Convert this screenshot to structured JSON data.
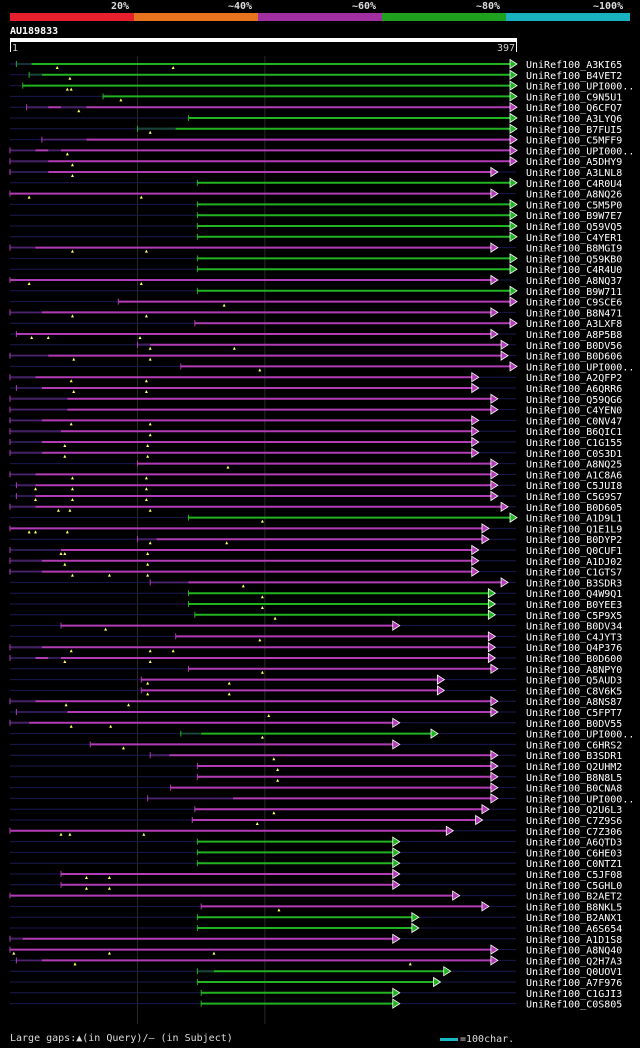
{
  "legend": {
    "segments": [
      {
        "label": "20%",
        "color": "#e8202e"
      },
      {
        "label": "~40%",
        "color": "#e8731f"
      },
      {
        "label": "~60%",
        "color": "#a22f9f"
      },
      {
        "label": "~80%",
        "color": "#1fa01f"
      },
      {
        "label": "~100%",
        "color": "#19b3c0"
      }
    ]
  },
  "query": {
    "id": "AU189833",
    "start_label": "1",
    "end_label": "397",
    "length": 397
  },
  "colors": {
    "purple": "#b23cb6",
    "green": "#22b322",
    "bg_line": "#1a1a50",
    "marker": "#ffff66"
  },
  "hits": [
    {
      "id": "UniRef100_A3KI65",
      "s": 5,
      "e": 397,
      "c": "green",
      "g": [
        [
          5,
          17
        ]
      ],
      "m": [
        37,
        128
      ]
    },
    {
      "id": "UniRef100_B4VET2",
      "s": 15,
      "e": 397,
      "c": "green",
      "g": [
        [
          15,
          25
        ]
      ],
      "m": [
        47
      ]
    },
    {
      "id": "UniRef100_UPI000..",
      "s": 10,
      "e": 397,
      "c": "green",
      "g": [],
      "m": [
        48,
        45
      ]
    },
    {
      "id": "UniRef100_C9N5U1",
      "s": 73,
      "e": 397,
      "c": "green",
      "g": [],
      "m": [
        87
      ]
    },
    {
      "id": "UniRef100_Q6CFQ7",
      "s": 13,
      "e": 397,
      "c": "purple",
      "g": [
        [
          13,
          30
        ],
        [
          40,
          60
        ]
      ],
      "m": [
        54
      ]
    },
    {
      "id": "UniRef100_A3LYQ6",
      "s": 140,
      "e": 397,
      "c": "green",
      "g": [],
      "m": []
    },
    {
      "id": "UniRef100_B7FUI5",
      "s": 100,
      "e": 397,
      "c": "green",
      "g": [
        [
          100,
          130
        ]
      ],
      "m": [
        110
      ]
    },
    {
      "id": "UniRef100_C5MFF9",
      "s": 25,
      "e": 397,
      "c": "purple",
      "g": [
        [
          25,
          60
        ]
      ],
      "m": []
    },
    {
      "id": "UniRef100_UPI000..",
      "s": 0,
      "e": 397,
      "c": "purple",
      "g": [
        [
          0,
          20
        ],
        [
          30,
          40
        ]
      ],
      "m": [
        45
      ]
    },
    {
      "id": "UniRef100_A5DHY9",
      "s": 0,
      "e": 397,
      "c": "purple",
      "g": [
        [
          0,
          30
        ]
      ],
      "m": [
        49
      ]
    },
    {
      "id": "UniRef100_A3LNL8",
      "s": 0,
      "e": 382,
      "c": "purple",
      "g": [
        [
          0,
          30
        ]
      ],
      "m": [
        49
      ]
    },
    {
      "id": "UniRef100_C4R0U4",
      "s": 147,
      "e": 397,
      "c": "green",
      "g": [],
      "m": []
    },
    {
      "id": "UniRef100_A8NQ26",
      "s": 0,
      "e": 382,
      "c": "purple",
      "g": [],
      "m": [
        15,
        103
      ]
    },
    {
      "id": "UniRef100_C5M5P0",
      "s": 147,
      "e": 397,
      "c": "green",
      "g": [],
      "m": []
    },
    {
      "id": "UniRef100_B9W7E7",
      "s": 147,
      "e": 397,
      "c": "green",
      "g": [],
      "m": []
    },
    {
      "id": "UniRef100_Q59VQ5",
      "s": 147,
      "e": 397,
      "c": "green",
      "g": [],
      "m": []
    },
    {
      "id": "UniRef100_C4YER1",
      "s": 147,
      "e": 397,
      "c": "green",
      "g": [],
      "m": []
    },
    {
      "id": "UniRef100_B8MGI9",
      "s": 0,
      "e": 382,
      "c": "purple",
      "g": [
        [
          0,
          20
        ]
      ],
      "m": [
        49,
        107
      ]
    },
    {
      "id": "UniRef100_Q59KB0",
      "s": 147,
      "e": 397,
      "c": "green",
      "g": [],
      "m": []
    },
    {
      "id": "UniRef100_C4R4U0",
      "s": 147,
      "e": 397,
      "c": "green",
      "g": [],
      "m": []
    },
    {
      "id": "UniRef100_A8NQ37",
      "s": 0,
      "e": 382,
      "c": "purple",
      "g": [],
      "m": [
        15,
        103
      ]
    },
    {
      "id": "UniRef100_B9W711",
      "s": 147,
      "e": 397,
      "c": "green",
      "g": [],
      "m": []
    },
    {
      "id": "UniRef100_C9SCE6",
      "s": 85,
      "e": 397,
      "c": "purple",
      "g": [],
      "m": [
        168
      ]
    },
    {
      "id": "UniRef100_B8N471",
      "s": 0,
      "e": 382,
      "c": "purple",
      "g": [
        [
          0,
          25
        ]
      ],
      "m": [
        49,
        107
      ]
    },
    {
      "id": "UniRef100_A3LXF8",
      "s": 145,
      "e": 397,
      "c": "purple",
      "g": [],
      "m": []
    },
    {
      "id": "UniRef100_A8P5B8",
      "s": 5,
      "e": 382,
      "c": "purple",
      "g": [],
      "m": [
        17,
        30,
        102
      ]
    },
    {
      "id": "UniRef100_B0DV56",
      "s": 100,
      "e": 390,
      "c": "purple",
      "g": [
        [
          100,
          110
        ]
      ],
      "m": [
        176,
        110
      ]
    },
    {
      "id": "UniRef100_B0D606",
      "s": 0,
      "e": 390,
      "c": "purple",
      "g": [
        [
          0,
          30
        ]
      ],
      "m": [
        50,
        110
      ]
    },
    {
      "id": "UniRef100_UPI000..",
      "s": 134,
      "e": 397,
      "c": "purple",
      "g": [],
      "m": [
        196
      ]
    },
    {
      "id": "UniRef100_A2QFP2",
      "s": 0,
      "e": 367,
      "c": "purple",
      "g": [
        [
          0,
          20
        ]
      ],
      "m": [
        48,
        107
      ]
    },
    {
      "id": "UniRef100_A6QRR6",
      "s": 5,
      "e": 367,
      "c": "purple",
      "g": [
        [
          5,
          25
        ]
      ],
      "m": [
        50,
        107
      ]
    },
    {
      "id": "UniRef100_Q59QG6",
      "s": 0,
      "e": 382,
      "c": "purple",
      "g": [
        [
          0,
          45
        ]
      ],
      "m": []
    },
    {
      "id": "UniRef100_C4YEN0",
      "s": 0,
      "e": 382,
      "c": "purple",
      "g": [
        [
          0,
          45
        ]
      ],
      "m": []
    },
    {
      "id": "UniRef100_C0NV47",
      "s": 0,
      "e": 367,
      "c": "purple",
      "g": [
        [
          0,
          25
        ]
      ],
      "m": [
        48,
        110
      ]
    },
    {
      "id": "UniRef100_B6QIC1",
      "s": 0,
      "e": 367,
      "c": "purple",
      "g": [
        [
          0,
          40
        ]
      ],
      "m": [
        110
      ]
    },
    {
      "id": "UniRef100_C1G155",
      "s": 0,
      "e": 367,
      "c": "purple",
      "g": [
        [
          0,
          25
        ]
      ],
      "m": [
        43,
        108
      ]
    },
    {
      "id": "UniRef100_C0S3D1",
      "s": 0,
      "e": 367,
      "c": "purple",
      "g": [
        [
          0,
          25
        ]
      ],
      "m": [
        43,
        108
      ]
    },
    {
      "id": "UniRef100_A8NQ25",
      "s": 100,
      "e": 382,
      "c": "purple",
      "g": [],
      "m": [
        171
      ]
    },
    {
      "id": "UniRef100_A1C8A6",
      "s": 0,
      "e": 382,
      "c": "purple",
      "g": [
        [
          0,
          20
        ]
      ],
      "m": [
        49,
        107
      ]
    },
    {
      "id": "UniRef100_C5JUI8",
      "s": 5,
      "e": 382,
      "c": "purple",
      "g": [
        [
          5,
          20
        ]
      ],
      "m": [
        20,
        49,
        107
      ]
    },
    {
      "id": "UniRef100_C5G9S7",
      "s": 5,
      "e": 382,
      "c": "purple",
      "g": [
        [
          5,
          20
        ]
      ],
      "m": [
        20,
        49,
        107
      ]
    },
    {
      "id": "UniRef100_B0D605",
      "s": 0,
      "e": 390,
      "c": "purple",
      "g": [
        [
          0,
          20
        ]
      ],
      "m": [
        38,
        47,
        110
      ]
    },
    {
      "id": "UniRef100_A1D9L1",
      "s": 140,
      "e": 397,
      "c": "green",
      "g": [],
      "m": [
        198
      ]
    },
    {
      "id": "UniRef100_Q1E1L9",
      "s": 0,
      "e": 375,
      "c": "purple",
      "g": [],
      "m": [
        15,
        20,
        45
      ]
    },
    {
      "id": "UniRef100_B0DYP2",
      "s": 100,
      "e": 375,
      "c": "purple",
      "g": [
        [
          100,
          115
        ]
      ],
      "m": [
        110,
        170
      ]
    },
    {
      "id": "UniRef100_Q0CUF1",
      "s": 0,
      "e": 367,
      "c": "purple",
      "g": [
        [
          0,
          40
        ]
      ],
      "m": [
        40,
        43,
        108
      ]
    },
    {
      "id": "UniRef100_A1DJ02",
      "s": 0,
      "e": 367,
      "c": "purple",
      "g": [
        [
          0,
          25
        ]
      ],
      "m": [
        43,
        108
      ]
    },
    {
      "id": "UniRef100_C1GTS7",
      "s": 0,
      "e": 367,
      "c": "purple",
      "g": [
        [
          0,
          25
        ]
      ],
      "m": [
        49,
        78,
        108
      ]
    },
    {
      "id": "UniRef100_B3SDR3",
      "s": 110,
      "e": 390,
      "c": "purple",
      "g": [
        [
          110,
          140
        ]
      ],
      "m": [
        183
      ]
    },
    {
      "id": "UniRef100_Q4W9Q1",
      "s": 140,
      "e": 380,
      "c": "green",
      "g": [],
      "m": [
        198
      ]
    },
    {
      "id": "UniRef100_B0YEE3",
      "s": 140,
      "e": 380,
      "c": "green",
      "g": [],
      "m": [
        198
      ]
    },
    {
      "id": "UniRef100_C5P9X5",
      "s": 145,
      "e": 380,
      "c": "green",
      "g": [],
      "m": [
        208
      ]
    },
    {
      "id": "UniRef100_B0DV34",
      "s": 40,
      "e": 305,
      "c": "purple",
      "g": [],
      "m": [
        75
      ]
    },
    {
      "id": "UniRef100_C4JYT3",
      "s": 130,
      "e": 380,
      "c": "purple",
      "g": [],
      "m": [
        196
      ]
    },
    {
      "id": "UniRef100_Q4P376",
      "s": 0,
      "e": 380,
      "c": "purple",
      "g": [
        [
          0,
          25
        ]
      ],
      "m": [
        48,
        110,
        128
      ]
    },
    {
      "id": "UniRef100_B0D600",
      "s": 0,
      "e": 380,
      "c": "purple",
      "g": [
        [
          0,
          20
        ],
        [
          30,
          40
        ]
      ],
      "m": [
        43,
        110
      ]
    },
    {
      "id": "UniRef100_A8NPY0",
      "s": 140,
      "e": 382,
      "c": "purple",
      "g": [],
      "m": [
        198
      ]
    },
    {
      "id": "UniRef100_Q5AUD3",
      "s": 103,
      "e": 340,
      "c": "purple",
      "g": [],
      "m": [
        108,
        172
      ]
    },
    {
      "id": "UniRef100_C8V6K5",
      "s": 103,
      "e": 340,
      "c": "purple",
      "g": [],
      "m": [
        108,
        172
      ]
    },
    {
      "id": "UniRef100_A8NS87",
      "s": 0,
      "e": 382,
      "c": "purple",
      "g": [
        [
          0,
          20
        ]
      ],
      "m": [
        44,
        93
      ]
    },
    {
      "id": "UniRef100_C5FPT7",
      "s": 5,
      "e": 382,
      "c": "purple",
      "g": [
        [
          5,
          45
        ]
      ],
      "m": [
        203
      ]
    },
    {
      "id": "UniRef100_B0DV55",
      "s": 0,
      "e": 305,
      "c": "purple",
      "g": [
        [
          0,
          15
        ]
      ],
      "m": [
        48,
        79
      ]
    },
    {
      "id": "UniRef100_UPI000..",
      "s": 134,
      "e": 335,
      "c": "green",
      "g": [
        [
          134,
          150
        ]
      ],
      "m": [
        198
      ]
    },
    {
      "id": "UniRef100_C6HRS2",
      "s": 63,
      "e": 305,
      "c": "purple",
      "g": [],
      "m": [
        89
      ]
    },
    {
      "id": "UniRef100_B3SDR1",
      "s": 110,
      "e": 382,
      "c": "purple",
      "g": [
        [
          110,
          125
        ]
      ],
      "m": [
        207
      ]
    },
    {
      "id": "UniRef100_Q2UHM2",
      "s": 147,
      "e": 382,
      "c": "purple",
      "g": [],
      "m": [
        210
      ]
    },
    {
      "id": "UniRef100_B8N8L5",
      "s": 147,
      "e": 382,
      "c": "purple",
      "g": [],
      "m": [
        210
      ]
    },
    {
      "id": "UniRef100_B0CNA8",
      "s": 126,
      "e": 382,
      "c": "purple",
      "g": [],
      "m": []
    },
    {
      "id": "UniRef100_UPI000..",
      "s": 108,
      "e": 382,
      "c": "purple",
      "g": [
        [
          108,
          175
        ]
      ],
      "m": []
    },
    {
      "id": "UniRef100_Q2U6L3",
      "s": 145,
      "e": 375,
      "c": "purple",
      "g": [],
      "m": [
        207
      ]
    },
    {
      "id": "UniRef100_C7Z9S6",
      "s": 143,
      "e": 370,
      "c": "purple",
      "g": [],
      "m": [
        194
      ]
    },
    {
      "id": "UniRef100_C7Z306",
      "s": 0,
      "e": 347,
      "c": "purple",
      "g": [],
      "m": [
        40,
        47,
        105
      ]
    },
    {
      "id": "UniRef100_A6QTD3",
      "s": 147,
      "e": 305,
      "c": "green",
      "g": [],
      "m": []
    },
    {
      "id": "UniRef100_C6HE03",
      "s": 147,
      "e": 305,
      "c": "green",
      "g": [],
      "m": []
    },
    {
      "id": "UniRef100_C0NTZ1",
      "s": 147,
      "e": 305,
      "c": "green",
      "g": [],
      "m": []
    },
    {
      "id": "UniRef100_C5JF08",
      "s": 40,
      "e": 305,
      "c": "purple",
      "g": [],
      "m": [
        60,
        78
      ]
    },
    {
      "id": "UniRef100_C5GHL0",
      "s": 40,
      "e": 305,
      "c": "purple",
      "g": [],
      "m": [
        60,
        78
      ]
    },
    {
      "id": "UniRef100_B2AET2",
      "s": 0,
      "e": 352,
      "c": "purple",
      "g": [],
      "m": []
    },
    {
      "id": "UniRef100_B8NKL5",
      "s": 150,
      "e": 375,
      "c": "purple",
      "g": [],
      "m": [
        211
      ]
    },
    {
      "id": "UniRef100_B2ANX1",
      "s": 147,
      "e": 320,
      "c": "green",
      "g": [],
      "m": []
    },
    {
      "id": "UniRef100_A6S654",
      "s": 147,
      "e": 320,
      "c": "green",
      "g": [],
      "m": []
    },
    {
      "id": "UniRef100_A1D1S8",
      "s": 0,
      "e": 305,
      "c": "purple",
      "g": [
        [
          0,
          10
        ]
      ],
      "m": []
    },
    {
      "id": "UniRef100_A8NQ40",
      "s": 0,
      "e": 382,
      "c": "purple",
      "g": [],
      "m": [
        3,
        78,
        160
      ]
    },
    {
      "id": "UniRef100_Q2H7A3",
      "s": 5,
      "e": 382,
      "c": "purple",
      "g": [
        [
          5,
          25
        ]
      ],
      "m": [
        51,
        314
      ]
    },
    {
      "id": "UniRef100_Q0UOV1",
      "s": 147,
      "e": 345,
      "c": "green",
      "g": [
        [
          147,
          160
        ]
      ],
      "m": []
    },
    {
      "id": "UniRef100_A7F976",
      "s": 147,
      "e": 337,
      "c": "green",
      "g": [],
      "m": []
    },
    {
      "id": "UniRef100_C1GJI3",
      "s": 150,
      "e": 305,
      "c": "green",
      "g": [],
      "m": []
    },
    {
      "id": "UniRef100_C0S805",
      "s": 150,
      "e": 305,
      "c": "green",
      "g": [],
      "m": []
    }
  ],
  "footer": {
    "text": "Large gaps:▲(in Query)/– (in Subject)",
    "scale_text": "=100char."
  }
}
